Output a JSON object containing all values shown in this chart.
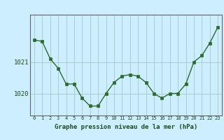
{
  "x": [
    0,
    1,
    2,
    3,
    4,
    5,
    6,
    7,
    8,
    9,
    10,
    11,
    12,
    13,
    14,
    15,
    16,
    17,
    18,
    19,
    20,
    21,
    22,
    23
  ],
  "y": [
    1021.7,
    1021.65,
    1021.1,
    1020.8,
    1020.3,
    1020.3,
    1019.85,
    1019.6,
    1019.6,
    1020.0,
    1020.35,
    1020.55,
    1020.6,
    1020.55,
    1020.35,
    1020.0,
    1019.85,
    1020.0,
    1020.0,
    1020.3,
    1021.0,
    1021.2,
    1021.6,
    1022.1
  ],
  "line_color": "#2d6a2d",
  "marker_color": "#2d6a2d",
  "bg_color": "#cceeff",
  "grid_color": "#aacccc",
  "ylabel_ticks": [
    1020,
    1021
  ],
  "xlabel": "Graphe pression niveau de la mer (hPa)",
  "ylim_min": 1019.3,
  "ylim_max": 1022.5,
  "axis_color": "#666666"
}
